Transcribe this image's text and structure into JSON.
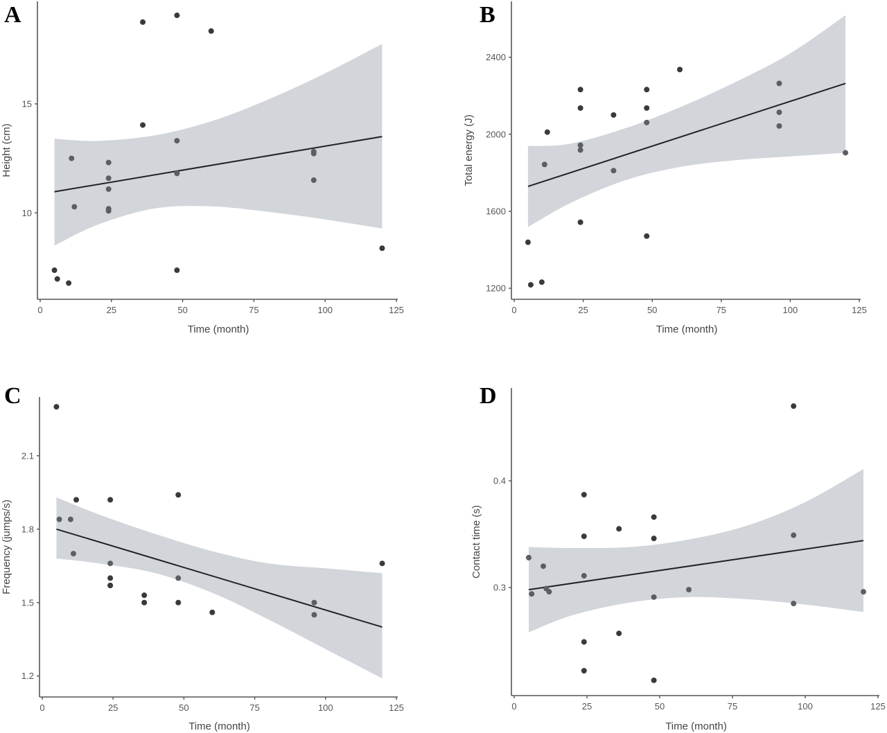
{
  "chart_data": [
    {
      "panel": "A",
      "type": "scatter",
      "title": "",
      "xlabel": "Time (month)",
      "ylabel": "Height (cm)",
      "xlim": [
        0,
        125
      ],
      "ylim": [
        6.1,
        19.7
      ],
      "xticks": [
        0,
        25,
        50,
        75,
        100,
        125
      ],
      "yticks": [
        10,
        15
      ],
      "grid": false,
      "points": [
        [
          5,
          7.37
        ],
        [
          6,
          6.97
        ],
        [
          10,
          6.78
        ],
        [
          11,
          12.5
        ],
        [
          12,
          10.28
        ],
        [
          24,
          12.31
        ],
        [
          24,
          11.59
        ],
        [
          24,
          11.09
        ],
        [
          24,
          10.19
        ],
        [
          24,
          10.09
        ],
        [
          36,
          18.75
        ],
        [
          36,
          14.03
        ],
        [
          48,
          19.06
        ],
        [
          48,
          13.31
        ],
        [
          48,
          11.81
        ],
        [
          48,
          7.37
        ],
        [
          60,
          18.34
        ],
        [
          96,
          12.81
        ],
        [
          96,
          12.72
        ],
        [
          96,
          11.5
        ],
        [
          120,
          8.38
        ]
      ],
      "fit": {
        "x": [
          5,
          120
        ],
        "y": [
          10.97,
          13.5
        ]
      },
      "ci_band": {
        "x": [
          5,
          20,
          40,
          60,
          80,
          100,
          120
        ],
        "upper": [
          13.4,
          13.3,
          13.55,
          14.2,
          15.2,
          16.4,
          17.75
        ],
        "lower": [
          8.5,
          9.45,
          10.2,
          10.3,
          10.05,
          9.7,
          9.28
        ]
      }
    },
    {
      "panel": "B",
      "type": "scatter",
      "title": "",
      "xlabel": "Time (month)",
      "ylabel": "Total energy (J)",
      "xlim": [
        0,
        125
      ],
      "ylim": [
        1150,
        2690
      ],
      "xticks": [
        0,
        25,
        50,
        75,
        100,
        125
      ],
      "yticks": [
        1200,
        1600,
        2000,
        2400
      ],
      "grid": false,
      "points": [
        [
          5,
          1439
        ],
        [
          6,
          1218
        ],
        [
          10,
          1232
        ],
        [
          11,
          1843
        ],
        [
          12,
          2011
        ],
        [
          24,
          2232
        ],
        [
          24,
          2136
        ],
        [
          24,
          1943
        ],
        [
          24,
          1918
        ],
        [
          24,
          1543
        ],
        [
          36,
          2100
        ],
        [
          36,
          1811
        ],
        [
          48,
          2232
        ],
        [
          48,
          2136
        ],
        [
          48,
          2061
        ],
        [
          48,
          1471
        ],
        [
          60,
          2336
        ],
        [
          96,
          2264
        ],
        [
          96,
          2114
        ],
        [
          96,
          2043
        ],
        [
          120,
          1904
        ]
      ],
      "fit": {
        "x": [
          5,
          120
        ],
        "y": [
          1729,
          2264
        ]
      },
      "ci_band": {
        "x": [
          5,
          20,
          40,
          60,
          80,
          100,
          120
        ],
        "upper": [
          1939,
          1950,
          2030,
          2140,
          2270,
          2420,
          2618
        ],
        "lower": [
          1518,
          1640,
          1760,
          1830,
          1865,
          1885,
          1904
        ]
      }
    },
    {
      "panel": "C",
      "type": "scatter",
      "title": "",
      "xlabel": "Time (month)",
      "ylabel": "Frequency (jumps/s)",
      "xlim": [
        0,
        125
      ],
      "ylim": [
        1.12,
        2.34
      ],
      "xticks": [
        0,
        25,
        50,
        75,
        100,
        125
      ],
      "yticks": [
        1.2,
        1.5,
        1.8,
        2.1
      ],
      "grid": false,
      "points": [
        [
          5,
          2.3
        ],
        [
          6,
          1.84
        ],
        [
          10,
          1.84
        ],
        [
          11,
          1.7
        ],
        [
          12,
          1.92
        ],
        [
          24,
          1.92
        ],
        [
          24,
          1.66
        ],
        [
          24,
          1.6
        ],
        [
          24,
          1.57
        ],
        [
          24,
          1.57
        ],
        [
          36,
          1.53
        ],
        [
          36,
          1.5
        ],
        [
          48,
          1.94
        ],
        [
          48,
          1.6
        ],
        [
          48,
          1.5
        ],
        [
          60,
          1.46
        ],
        [
          96,
          1.5
        ],
        [
          96,
          1.45
        ],
        [
          120,
          1.66
        ]
      ],
      "fit": {
        "x": [
          5,
          120
        ],
        "y": [
          1.8,
          1.4
        ]
      },
      "ci_band": {
        "x": [
          5,
          20,
          40,
          60,
          80,
          100,
          120
        ],
        "upper": [
          1.93,
          1.86,
          1.78,
          1.71,
          1.66,
          1.64,
          1.62
        ],
        "lower": [
          1.68,
          1.66,
          1.62,
          1.54,
          1.43,
          1.31,
          1.19
        ]
      }
    },
    {
      "panel": "D",
      "type": "scatter",
      "title": "",
      "xlabel": "Time (month)",
      "ylabel": "Contact time (s)",
      "xlim": [
        0,
        125
      ],
      "ylim": [
        0.2,
        0.487
      ],
      "xticks": [
        0,
        25,
        50,
        75,
        100,
        125
      ],
      "yticks": [
        0.3,
        0.4
      ],
      "grid": false,
      "points": [
        [
          5,
          0.328
        ],
        [
          6,
          0.294
        ],
        [
          10,
          0.32
        ],
        [
          11,
          0.299
        ],
        [
          12,
          0.296
        ],
        [
          24,
          0.387
        ],
        [
          24,
          0.348
        ],
        [
          24,
          0.311
        ],
        [
          24,
          0.249
        ],
        [
          24,
          0.222
        ],
        [
          36,
          0.355
        ],
        [
          36,
          0.257
        ],
        [
          48,
          0.366
        ],
        [
          48,
          0.346
        ],
        [
          48,
          0.291
        ],
        [
          48,
          0.213
        ],
        [
          60,
          0.298
        ],
        [
          96,
          0.47
        ],
        [
          96,
          0.349
        ],
        [
          96,
          0.285
        ],
        [
          120,
          0.296
        ]
      ],
      "fit": {
        "x": [
          5,
          120
        ],
        "y": [
          0.298,
          0.344
        ]
      },
      "ci_band": {
        "x": [
          5,
          20,
          40,
          60,
          80,
          100,
          120
        ],
        "upper": [
          0.338,
          0.337,
          0.338,
          0.345,
          0.358,
          0.38,
          0.411
        ],
        "lower": [
          0.258,
          0.274,
          0.286,
          0.291,
          0.289,
          0.284,
          0.277
        ]
      }
    }
  ],
  "panels": {
    "A": {
      "letter": "A"
    },
    "B": {
      "letter": "B"
    },
    "C": {
      "letter": "C"
    },
    "D": {
      "letter": "D"
    }
  }
}
